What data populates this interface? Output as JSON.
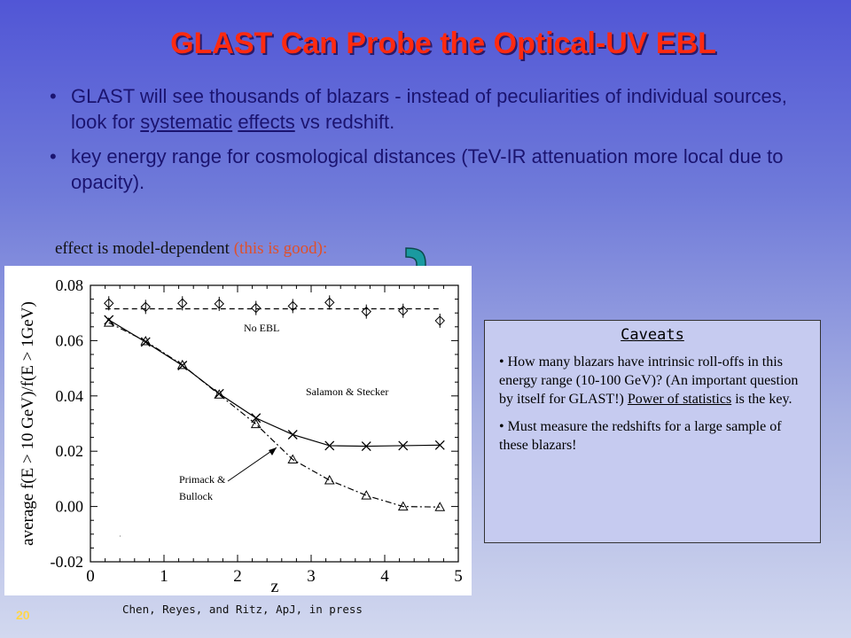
{
  "slide": {
    "title": "GLAST Can Probe the Optical-UV EBL",
    "bullets": [
      {
        "pre": "GLAST will see thousands of blazars - instead of peculiarities of individual sources, look for ",
        "u1": "systematic",
        "mid": " ",
        "u2": "effects",
        "post": " vs redshift."
      },
      {
        "text": "key energy range for cosmological distances (TeV-IR attenuation more local due to opacity)."
      }
    ],
    "effect_note": "effect is model-dependent ",
    "effect_note_paren": "(this is good):",
    "page_number": "20",
    "citation": "Chen, Reyes, and Ritz, ApJ, in press",
    "arrow_color": "#1a9aa0"
  },
  "caveats": {
    "title": "Caveats",
    "item1_pre": "How many blazars have intrinsic roll-offs in this energy range (10-100 GeV)? (An important question by itself for GLAST!)  ",
    "item1_u": "Power of statistics",
    "item1_post": " is the key.",
    "item2": "Must measure the redshifts for a large sample of these blazars!"
  },
  "chart_data": {
    "type": "line",
    "xlabel": "z",
    "ylabel": "average f(E > 10 GeV)/f(E > 1GeV)",
    "xlim": [
      0,
      5
    ],
    "ylim": [
      -0.02,
      0.08
    ],
    "xticks": [
      "0",
      "1",
      "2",
      "3",
      "4",
      "5"
    ],
    "yticks": [
      "-0.02",
      "0.00",
      "0.02",
      "0.04",
      "0.06",
      "0.08"
    ],
    "annotations": [
      "No EBL",
      "Salamon & Stecker",
      "Primack &",
      "Bullock"
    ],
    "series": [
      {
        "marker": "diamond",
        "line_style": "dashed",
        "line_value": 0.0715,
        "points": [
          [
            0.25,
            0.0735
          ],
          [
            0.75,
            0.0722
          ],
          [
            1.25,
            0.0735
          ],
          [
            1.75,
            0.0733
          ],
          [
            2.25,
            0.0718
          ],
          [
            2.75,
            0.0725
          ],
          [
            3.25,
            0.0738
          ],
          [
            3.75,
            0.0705
          ],
          [
            4.25,
            0.0708
          ],
          [
            4.75,
            0.0672
          ]
        ]
      },
      {
        "marker": "x",
        "line_style": "solid",
        "points": [
          [
            0.25,
            0.0675
          ],
          [
            0.75,
            0.0595
          ],
          [
            1.25,
            0.051
          ],
          [
            1.75,
            0.0408
          ],
          [
            2.25,
            0.032
          ],
          [
            2.75,
            0.026
          ],
          [
            3.25,
            0.022
          ],
          [
            3.75,
            0.0218
          ],
          [
            4.25,
            0.022
          ],
          [
            4.75,
            0.0222
          ]
        ]
      },
      {
        "marker": "triangle",
        "line_style": "dash-dot",
        "points": [
          [
            0.25,
            0.0665
          ],
          [
            0.75,
            0.0598
          ],
          [
            1.25,
            0.0512
          ],
          [
            1.75,
            0.0405
          ],
          [
            2.25,
            0.0298
          ],
          [
            2.75,
            0.017
          ],
          [
            3.25,
            0.0095
          ],
          [
            3.75,
            0.004
          ],
          [
            4.25,
            0.0
          ],
          [
            4.75,
            -0.0002
          ]
        ]
      }
    ]
  }
}
